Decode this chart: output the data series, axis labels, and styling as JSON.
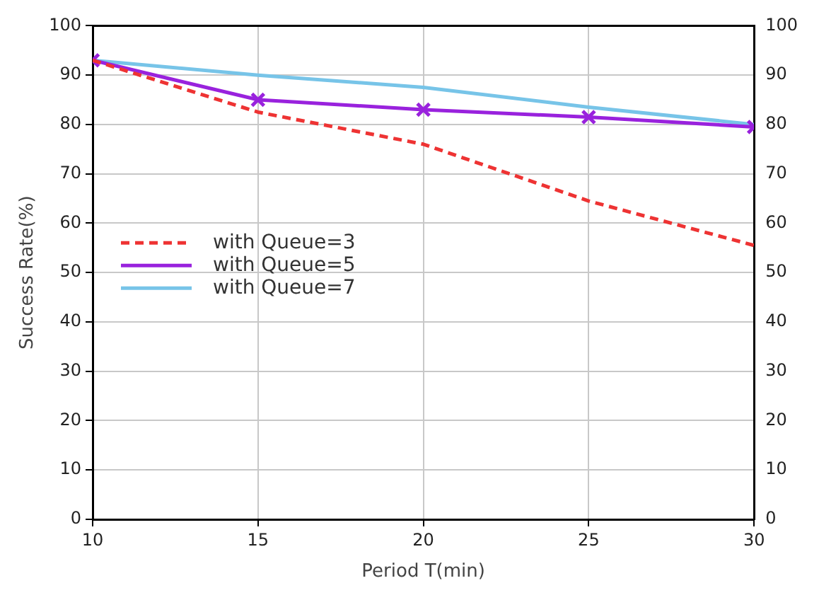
{
  "chart_data": {
    "type": "line",
    "xlabel": "Period T(min)",
    "ylabel": "Success Rate(%)",
    "x": [
      10,
      15,
      20,
      25,
      30
    ],
    "xlim": [
      10,
      30
    ],
    "xticks": [
      10,
      15,
      20,
      25,
      30
    ],
    "ylim": [
      0,
      100
    ],
    "yticks": [
      0,
      10,
      20,
      30,
      40,
      50,
      60,
      70,
      80,
      90,
      100
    ],
    "y2lim": [
      0,
      100
    ],
    "y2ticks": [
      0,
      10,
      20,
      30,
      40,
      50,
      60,
      70,
      80,
      90,
      100
    ],
    "grid": true,
    "legend": "left",
    "series": [
      {
        "name": "with Queue=3",
        "color": "#ee3333",
        "values": [
          93,
          82.5,
          76,
          64.5,
          55.5
        ],
        "line_style": "dashed",
        "marker": "none"
      },
      {
        "name": "with Queue=5",
        "color": "#9922dd",
        "values": [
          93,
          85,
          83,
          81.5,
          79.5
        ],
        "line_style": "solid",
        "marker": "cross"
      },
      {
        "name": "with Queue=7",
        "color": "#77c4e8",
        "values": [
          93,
          90,
          87.5,
          83.5,
          80
        ],
        "line_style": "solid",
        "marker": "none"
      }
    ]
  }
}
